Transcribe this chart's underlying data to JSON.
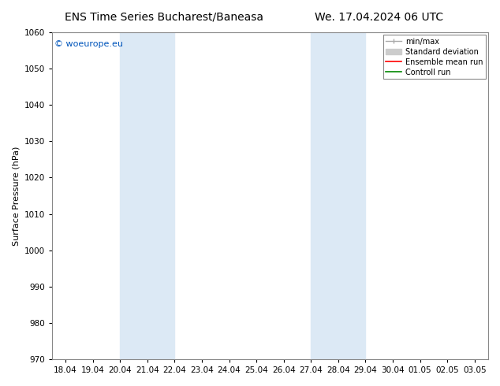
{
  "title_left": "ENS Time Series Bucharest/Baneasa",
  "title_right": "We. 17.04.2024 06 UTC",
  "ylabel": "Surface Pressure (hPa)",
  "ylim": [
    970,
    1060
  ],
  "yticks": [
    970,
    980,
    990,
    1000,
    1010,
    1020,
    1030,
    1040,
    1050,
    1060
  ],
  "x_tick_labels": [
    "18.04",
    "19.04",
    "20.04",
    "21.04",
    "22.04",
    "23.04",
    "24.04",
    "25.04",
    "26.04",
    "27.04",
    "28.04",
    "29.04",
    "30.04",
    "01.05",
    "02.05",
    "03.05"
  ],
  "shade_pairs": [
    [
      "20.04",
      "22.04"
    ],
    [
      "27.04",
      "29.04"
    ]
  ],
  "shade_color": "#dce9f5",
  "copyright_text": "© woeurope.eu",
  "copyright_color": "#0055bb",
  "background_color": "#ffffff",
  "title_fontsize": 10,
  "tick_fontsize": 7.5,
  "ylabel_fontsize": 8,
  "copyright_fontsize": 8,
  "legend_fontsize": 7,
  "minmax_color": "#aaaaaa",
  "std_color": "#cccccc",
  "ensemble_color": "#ff0000",
  "control_color": "#008800"
}
